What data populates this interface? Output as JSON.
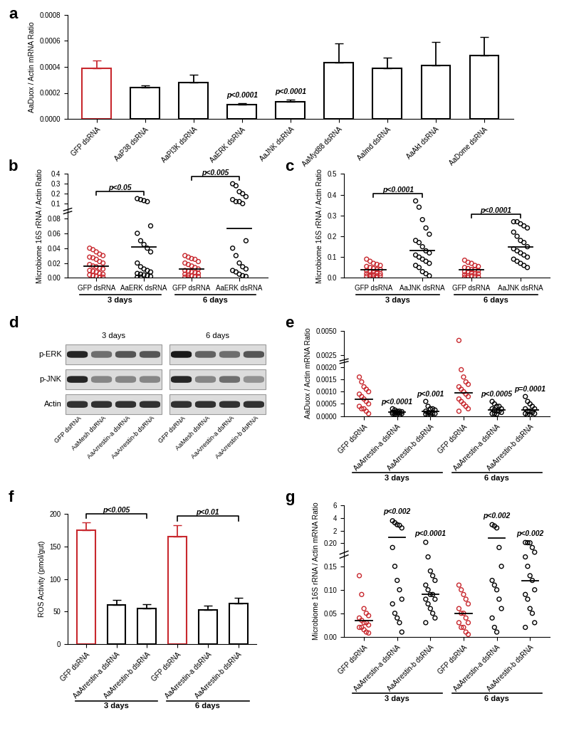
{
  "chart_data": [
    {
      "panel": "a",
      "type": "bar",
      "categories": [
        "GFP dsRNA",
        "AaP38 dsRNA",
        "AaPI3K dsRNA",
        "AaERK dsRNA",
        "AaJNK dsRNA",
        "AaMyd88 dsRNA",
        "AaImd dsRNA",
        "AaAkt dsRNA",
        "AaDome dsRNA"
      ],
      "values": [
        0.00039,
        0.00024,
        0.00028,
        0.00011,
        0.00013,
        0.00043,
        0.00039,
        0.00041,
        0.00049
      ],
      "errors": [
        6e-05,
        2e-05,
        6e-05,
        1e-05,
        2e-05,
        0.00015,
        8e-05,
        0.00018,
        0.00014
      ],
      "colors": [
        "#c8282e",
        "#000000",
        "#000000",
        "#000000",
        "#000000",
        "#000000",
        "#000000",
        "#000000",
        "#000000"
      ],
      "ylabel": "AaDuox / Actin mRNA Ratio",
      "ylim": [
        0,
        0.0008
      ],
      "yticks": [
        {
          "value": 0,
          "label": "0.0000"
        },
        {
          "value": 0.0002,
          "label": "0.0002"
        },
        {
          "value": 0.0004,
          "label": "0.0004"
        },
        {
          "value": 0.0006,
          "label": "0.0006"
        },
        {
          "value": 0.0008,
          "label": "0.0008"
        }
      ],
      "annotations": [
        {
          "text": "p<0.0001",
          "at": 3
        },
        {
          "text": "p<0.0001",
          "at": 4
        }
      ]
    },
    {
      "panel": "b",
      "type": "dot",
      "categories": [
        "GFP dsRNA",
        "AaERK dsRNA",
        "GFP dsRNA",
        "AaERK dsRNA"
      ],
      "group_labels": [
        "3 days",
        "6 days"
      ],
      "colors": [
        "#c8282e",
        "#000000",
        "#c8282e",
        "#000000"
      ],
      "points": [
        [
          0.04,
          0.038,
          0.035,
          0.032,
          0.03,
          0.028,
          0.027,
          0.025,
          0.022,
          0.02,
          0.018,
          0.016,
          0.015,
          0.013,
          0.012,
          0.01,
          0.009,
          0.008,
          0.006,
          0.005,
          0.004,
          0.003,
          0.002,
          0.001,
          0.001
        ],
        [
          0.15,
          0.14,
          0.13,
          0.12,
          0.07,
          0.06,
          0.05,
          0.045,
          0.04,
          0.035,
          0.02,
          0.015,
          0.012,
          0.01,
          0.008,
          0.006,
          0.005,
          0.004,
          0.003,
          0.002,
          0.001,
          0.001
        ],
        [
          0.03,
          0.028,
          0.026,
          0.025,
          0.022,
          0.02,
          0.018,
          0.016,
          0.014,
          0.012,
          0.01,
          0.009,
          0.008,
          0.007,
          0.006,
          0.005,
          0.004,
          0.003,
          0.002,
          0.002,
          0.001,
          0.001
        ],
        [
          0.3,
          0.28,
          0.22,
          0.2,
          0.17,
          0.14,
          0.12,
          0.12,
          0.1,
          0.05,
          0.04,
          0.03,
          0.02,
          0.015,
          0.012,
          0.01,
          0.008,
          0.005,
          0.003,
          0.002
        ]
      ],
      "means": [
        0.016,
        0.042,
        0.012,
        0.067
      ],
      "ylabel": "Microbiome 16S rRNA / Actin Ratio",
      "ylim": [
        0,
        0.4
      ],
      "yticks": [
        {
          "value": 0,
          "label": "0.00"
        },
        0.02,
        0.04,
        0.06,
        0.08,
        0.1,
        0.2,
        0.3,
        0.4
      ],
      "annotations": [
        {
          "text": "p<0.05",
          "span": [
            0,
            1
          ]
        },
        {
          "text": "p<0.005",
          "span": [
            2,
            3
          ]
        }
      ]
    },
    {
      "panel": "c",
      "type": "dot",
      "categories": [
        "GFP dsRNA",
        "AaJNK dsRNA",
        "GFP dsRNA",
        "AaJNK dsRNA"
      ],
      "group_labels": [
        "3 days",
        "6 days"
      ],
      "colors": [
        "#c8282e",
        "#000000",
        "#c8282e",
        "#000000"
      ],
      "points": [
        [
          0.09,
          0.08,
          0.07,
          0.065,
          0.06,
          0.055,
          0.05,
          0.045,
          0.04,
          0.04,
          0.035,
          0.03,
          0.03,
          0.025,
          0.02,
          0.02,
          0.015,
          0.015,
          0.01,
          0.01,
          0.008,
          0.005,
          0.004,
          0.002
        ],
        [
          0.37,
          0.34,
          0.28,
          0.24,
          0.21,
          0.18,
          0.17,
          0.15,
          0.13,
          0.12,
          0.11,
          0.1,
          0.09,
          0.08,
          0.07,
          0.06,
          0.05,
          0.03,
          0.02,
          0.01
        ],
        [
          0.085,
          0.075,
          0.07,
          0.06,
          0.055,
          0.05,
          0.045,
          0.04,
          0.04,
          0.035,
          0.03,
          0.03,
          0.025,
          0.02,
          0.02,
          0.015,
          0.01,
          0.01,
          0.008,
          0.005,
          0.003,
          0.002
        ],
        [
          0.27,
          0.27,
          0.26,
          0.25,
          0.24,
          0.22,
          0.2,
          0.18,
          0.17,
          0.15,
          0.14,
          0.13,
          0.12,
          0.11,
          0.1,
          0.09,
          0.08,
          0.07,
          0.06,
          0.05
        ]
      ],
      "means": [
        0.04,
        0.13,
        0.04,
        0.15
      ],
      "ylabel": "Microbiome 16S rRNA / Actin Ratio",
      "ylim": [
        0.0,
        0.5
      ],
      "yticks": [
        0.0,
        0.1,
        0.2,
        0.3,
        0.4,
        0.5
      ],
      "annotations": [
        {
          "text": "p<0.0001",
          "span": [
            0,
            1
          ]
        },
        {
          "text": "p<0.0001",
          "span": [
            2,
            3
          ]
        }
      ]
    },
    {
      "panel": "d",
      "type": "blot",
      "rows": [
        "p-ERK",
        "p-JNK",
        "Actin"
      ],
      "group_labels": [
        "3 days",
        "6 days"
      ],
      "categories": [
        "GFP dsRNA",
        "AaMesh dsRNA",
        "AaArrestin-a dsRNA",
        "AaArrestin-b dsRNA",
        "GFP dsRNA",
        "AaMesh dsRNA",
        "AaArrestin-a dsRNA",
        "AaArrestin-b dsRNA"
      ],
      "band_intensity": [
        [
          0.9,
          0.6,
          0.7,
          0.7,
          0.95,
          0.65,
          0.6,
          0.7
        ],
        [
          0.9,
          0.5,
          0.5,
          0.5,
          0.9,
          0.5,
          0.6,
          0.45
        ],
        [
          0.85,
          0.85,
          0.85,
          0.85,
          0.85,
          0.85,
          0.85,
          0.85
        ]
      ]
    },
    {
      "panel": "e",
      "type": "dot",
      "categories": [
        "GFP dsRNA",
        "AaArrestin-a dsRNA",
        "AaArrestin-b dsRNA",
        "GFP dsRNA",
        "AaArrestin-a dsRNA",
        "AaArrestin-b dsRNA"
      ],
      "group_labels": [
        "3 days",
        "6 days"
      ],
      "colors": [
        "#c8282e",
        "#000000",
        "#000000",
        "#c8282e",
        "#000000",
        "#000000"
      ],
      "points": [
        [
          0.0016,
          0.0014,
          0.0012,
          0.0011,
          0.001,
          0.0009,
          0.0008,
          0.0007,
          0.0006,
          0.0005,
          0.0004,
          0.0003,
          0.0003,
          0.0002,
          0.0001
        ],
        [
          0.0003,
          0.00025,
          0.0002,
          0.0002,
          0.00018,
          0.00016,
          0.00015,
          0.00014,
          0.00012,
          0.0001,
          0.0001,
          8e-05,
          6e-05,
          5e-05
        ],
        [
          0.0006,
          0.0004,
          0.0003,
          0.0003,
          0.00025,
          0.0002,
          0.00015,
          0.00012,
          0.0001,
          0.0001,
          8e-05,
          5e-05,
          5e-05
        ],
        [
          0.004,
          0.0019,
          0.0016,
          0.0014,
          0.0013,
          0.0012,
          0.0011,
          0.001,
          0.0009,
          0.0008,
          0.0007,
          0.0006,
          0.0005,
          0.0004,
          0.0003,
          0.0002
        ],
        [
          0.0006,
          0.0005,
          0.0004,
          0.0004,
          0.0003,
          0.0003,
          0.00025,
          0.0002,
          0.0002,
          0.00015,
          0.0001,
          0.0001,
          8e-05
        ],
        [
          0.0008,
          0.0006,
          0.0005,
          0.0004,
          0.0003,
          0.0003,
          0.0002,
          0.0002,
          0.00015,
          0.0001,
          0.0001,
          5e-05,
          5e-05
        ]
      ],
      "means": [
        0.00068,
        0.00015,
        0.0002,
        0.00095,
        0.00025,
        0.00025
      ],
      "ylabel": "AaDuox / Actin mRNA Ratio",
      "ylim": [
        0,
        0.005
      ],
      "yticks": [
        {
          "value": 0,
          "label": "0.0000"
        },
        {
          "value": 0.0005,
          "label": "0.0005"
        },
        {
          "value": 0.001,
          "label": "0.0010"
        },
        {
          "value": 0.0015,
          "label": "0.0015"
        },
        {
          "value": 0.002,
          "label": "0.0020"
        },
        {
          "value": 0.0025,
          "label": "0.0025"
        },
        {
          "value": 0.005,
          "label": "0.0050"
        }
      ],
      "annotations": [
        {
          "text": "p<0.0001",
          "at": 1
        },
        {
          "text": "p<0.001",
          "at": 2
        },
        {
          "text": "p<0.0005",
          "at": 4
        },
        {
          "text": "p=0.0001",
          "at": 5
        }
      ]
    },
    {
      "panel": "f",
      "type": "bar",
      "categories": [
        "GFP dsRNA",
        "AaArrestin-a dsRNA",
        "AaArrestin-b dsRNA",
        "GFP dsRNA",
        "AaArrestin-a dsRNA",
        "AaArrestin-b dsRNA"
      ],
      "group_labels": [
        "3 days",
        "6 days"
      ],
      "values": [
        175,
        60,
        55,
        165,
        53,
        63
      ],
      "errors": [
        12,
        8,
        6,
        18,
        6,
        8
      ],
      "colors": [
        "#c8282e",
        "#000000",
        "#000000",
        "#c8282e",
        "#000000",
        "#000000"
      ],
      "ylabel": "ROS Activity (pmol/gut)",
      "ylim": [
        0,
        200
      ],
      "yticks": [
        0,
        50,
        100,
        150,
        200
      ],
      "annotations": [
        {
          "text": "p<0.005",
          "span": [
            0,
            2
          ]
        },
        {
          "text": "p<0.01",
          "span": [
            3,
            5
          ]
        }
      ]
    },
    {
      "panel": "g",
      "type": "dot",
      "categories": [
        "GFP dsRNA",
        "AaArrestin-a dsRNA",
        "AaArrestin-b dsRNA",
        "GFP dsRNA",
        "AaArrestin-a dsRNA",
        "AaArrestin-b dsRNA"
      ],
      "group_labels": [
        "3 days",
        "6 days"
      ],
      "colors": [
        "#c8282e",
        "#000000",
        "#000000",
        "#c8282e",
        "#000000",
        "#000000"
      ],
      "points": [
        [
          0.13,
          0.09,
          0.06,
          0.05,
          0.045,
          0.04,
          0.035,
          0.03,
          0.03,
          0.025,
          0.02,
          0.02,
          0.015,
          0.01,
          0.008
        ],
        [
          3.6,
          3.3,
          3.0,
          2.9,
          2.5,
          0.19,
          0.15,
          0.12,
          0.1,
          0.08,
          0.07,
          0.05,
          0.04,
          0.03,
          0.01
        ],
        [
          0.28,
          0.17,
          0.14,
          0.13,
          0.12,
          0.11,
          0.1,
          0.09,
          0.09,
          0.08,
          0.08,
          0.07,
          0.06,
          0.05,
          0.04,
          0.03
        ],
        [
          0.11,
          0.1,
          0.09,
          0.08,
          0.07,
          0.06,
          0.05,
          0.05,
          0.04,
          0.03,
          0.03,
          0.02,
          0.02,
          0.01,
          0.005
        ],
        [
          3.0,
          2.8,
          2.5,
          0.19,
          0.15,
          0.12,
          0.11,
          0.1,
          0.08,
          0.06,
          0.04,
          0.02,
          0.01
        ],
        [
          0.25,
          0.22,
          0.2,
          0.19,
          0.18,
          0.17,
          0.15,
          0.13,
          0.12,
          0.1,
          0.09,
          0.08,
          0.06,
          0.05,
          0.03,
          0.02
        ]
      ],
      "means": [
        0.035,
        1.0,
        0.09,
        0.05,
        0.9,
        0.12
      ],
      "ylabel": "Microbiome 16S rRNA / Actin mRNA Ratio",
      "ylim": [
        0,
        6
      ],
      "yticks": [
        {
          "value": 0,
          "label": "0.00"
        },
        0.05,
        {
          "value": 0.1,
          "label": "0.10"
        },
        0.15,
        {
          "value": 0.2,
          "label": "0.20"
        },
        2,
        4,
        6
      ],
      "annotations": [
        {
          "text": "p<0.002",
          "at": 1
        },
        {
          "text": "p<0.0001",
          "at": 2
        },
        {
          "text": "p<0.002",
          "at": 4
        },
        {
          "text": "p<0.002",
          "at": 5
        }
      ]
    }
  ]
}
